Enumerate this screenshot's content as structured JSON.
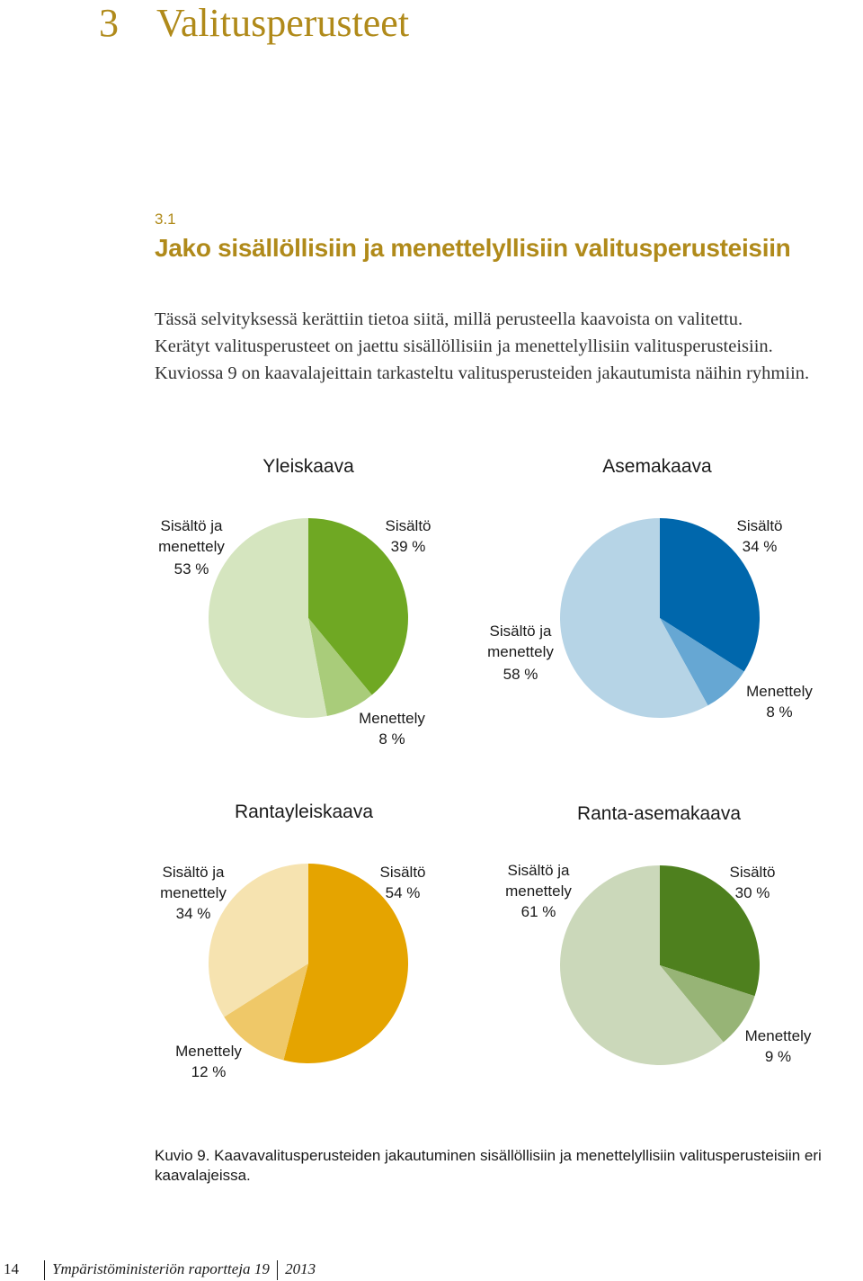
{
  "chapter": {
    "number": "3",
    "title": "Valitusperusteet"
  },
  "section": {
    "number": "3.1",
    "title": "Jako sisällöllisiin ja menettelyllisiin valitusperusteisiin"
  },
  "intro": [
    "Tässä selvityksessä kerättiin tietoa siitä, millä perusteella kaavoista on valitettu.",
    "Kerätyt valitusperusteet on jaettu sisällöllisiin ja menettelyllisiin valitusperusteisiin.",
    "Kuviossa 9 on kaavalajeittain tarkasteltu valitusperusteiden jakautumista näihin ryhmiin."
  ],
  "chart_data": [
    {
      "type": "pie",
      "title": "Yleiskaava",
      "slices": [
        {
          "label": "Sisältö",
          "value": 39,
          "display": "39 %",
          "color": "#6fa823"
        },
        {
          "label": "Menettely",
          "value": 8,
          "display": "8 %",
          "color": "#a9cc7a"
        },
        {
          "label": "Sisältö ja menettely",
          "value": 53,
          "display": "53 %",
          "color": "#d5e5bf"
        }
      ]
    },
    {
      "type": "pie",
      "title": "Asemakaava",
      "slices": [
        {
          "label": "Sisältö",
          "value": 34,
          "display": "34 %",
          "color": "#0067ac"
        },
        {
          "label": "Menettely",
          "value": 8,
          "display": "8 %",
          "color": "#66a7d3"
        },
        {
          "label": "Sisältö ja menettely",
          "value": 58,
          "display": "58 %",
          "color": "#b6d4e6"
        }
      ]
    },
    {
      "type": "pie",
      "title": "Rantayleiskaava",
      "slices": [
        {
          "label": "Sisältö",
          "value": 54,
          "display": "54 %",
          "color": "#e5a400"
        },
        {
          "label": "Menettely",
          "value": 12,
          "display": "12 %",
          "color": "#efc868"
        },
        {
          "label": "Sisältö ja menettely",
          "value": 34,
          "display": "34 %",
          "color": "#f6e3b0"
        }
      ]
    },
    {
      "type": "pie",
      "title": "Ranta-asemakaava",
      "slices": [
        {
          "label": "Sisältö",
          "value": 30,
          "display": "30 %",
          "color": "#4e801e"
        },
        {
          "label": "Menettely",
          "value": 9,
          "display": "9 %",
          "color": "#97b476"
        },
        {
          "label": "Sisältö ja menettely",
          "value": 61,
          "display": "61 %",
          "color": "#cbd8ba"
        }
      ]
    }
  ],
  "caption": "Kuvio 9. Kaavavalitusperusteiden jakautuminen sisällöllisiin ja menettelyllisiin valitusperusteisiin eri kaavalajeissa.",
  "footer": {
    "page": "14",
    "series": "Ympäristöministeriön raportteja",
    "issue": "19",
    "year": "2013"
  }
}
